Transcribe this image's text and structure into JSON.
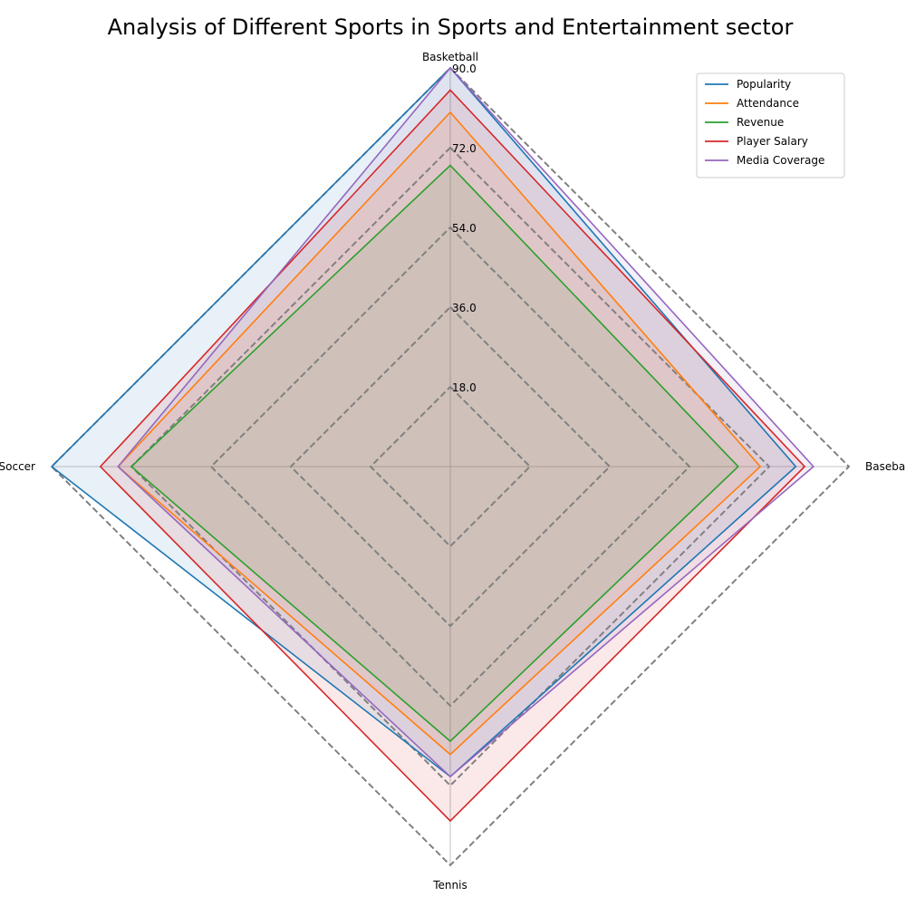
{
  "chart_data": {
    "type": "radar",
    "title": "Analysis of Different Sports in Sports and Entertainment sector",
    "categories": [
      "Basketball",
      "Baseball",
      "Tennis",
      "Soccer"
    ],
    "series": [
      {
        "name": "Popularity",
        "color": "#1f77b4",
        "values": [
          90,
          78,
          70,
          90
        ],
        "filled": true
      },
      {
        "name": "Attendance",
        "color": "#ff7f0e",
        "values": [
          80,
          70,
          65,
          75
        ],
        "filled": true
      },
      {
        "name": "Revenue",
        "color": "#2ca02c",
        "values": [
          68,
          65,
          62,
          72
        ],
        "filled": true
      },
      {
        "name": "Player Salary",
        "color": "#d62728",
        "values": [
          85,
          80,
          80,
          79
        ],
        "filled": true
      },
      {
        "name": "Media Coverage",
        "color": "#9467bd",
        "values": [
          90,
          82,
          70,
          75
        ],
        "filled": true
      }
    ],
    "rlim": [
      0,
      90
    ],
    "rticks": [
      18.0,
      36.0,
      54.0,
      72.0,
      90.0
    ],
    "rtick_labels": [
      "18.0",
      "36.0",
      "54.0",
      "72.0",
      "90.0"
    ],
    "grid": true,
    "legend_position": "top-right"
  }
}
